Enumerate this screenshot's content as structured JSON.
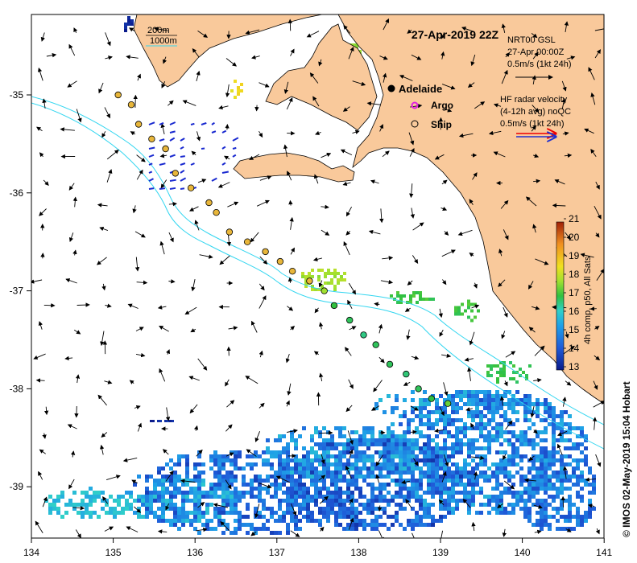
{
  "title": "27-Apr-2019 22Z",
  "depth_legend": {
    "contour_1": "200m",
    "contour_2": "1000m"
  },
  "place_labels": {
    "city": "Adelaide",
    "argo": "Argo",
    "ship": "Ship"
  },
  "gsl_legend": {
    "line1": "NRT00 GSL",
    "line2": "27-Apr 00:00Z",
    "line3": "0.5m/s (1kt 24h)"
  },
  "radar_legend": {
    "line1": "HF radar velocity",
    "line2": "(4-12h avg) noQC",
    "line3": "0.5m/s (1kt 24h)"
  },
  "colorbar": {
    "label": "4h comp, p50, All Sats",
    "ticks": [
      "13",
      "14",
      "15",
      "16",
      "17",
      "18",
      "19",
      "20",
      "21"
    ]
  },
  "credit": "© IMOS 02-May-2019 15:04 Hobart",
  "axes": {
    "x_ticks": [
      "134",
      "135",
      "136",
      "137",
      "138",
      "139",
      "140",
      "141"
    ],
    "y_ticks": [
      "-35",
      "-36",
      "-37",
      "-38",
      "-39"
    ]
  },
  "colors": {
    "land": "#f9c99b",
    "contour": "#33d6f0",
    "argo": "#e020e0",
    "ship_fill": "#e8b63a"
  },
  "ship_track": [
    [
      135.06,
      -35.0,
      null
    ],
    [
      135.22,
      -35.1,
      null
    ],
    [
      135.31,
      -35.3,
      null
    ],
    [
      135.47,
      -35.45,
      null
    ],
    [
      135.64,
      -35.55,
      null
    ],
    [
      135.76,
      -35.8,
      null
    ],
    [
      135.95,
      -35.95,
      null
    ],
    [
      136.17,
      -36.1,
      null
    ],
    [
      136.26,
      -36.2,
      null
    ],
    [
      136.42,
      -36.4,
      null
    ],
    [
      136.64,
      -36.5,
      null
    ],
    [
      136.86,
      -36.6,
      null
    ],
    [
      137.04,
      -36.7,
      null
    ],
    [
      137.19,
      -36.8,
      null
    ],
    [
      137.4,
      -36.9,
      null
    ],
    [
      137.58,
      -37.0,
      18.0
    ],
    [
      137.7,
      -37.15,
      17.0
    ],
    [
      137.89,
      -37.3,
      16.8
    ],
    [
      138.06,
      -37.45,
      16.5
    ],
    [
      138.21,
      -37.55,
      16.8
    ],
    [
      138.38,
      -37.75,
      16.8
    ],
    [
      138.58,
      -37.85,
      16.6
    ],
    [
      138.73,
      -38.0,
      16.8
    ],
    [
      138.89,
      -38.1,
      17.0
    ],
    [
      139.09,
      -38.15,
      17.5
    ]
  ]
}
